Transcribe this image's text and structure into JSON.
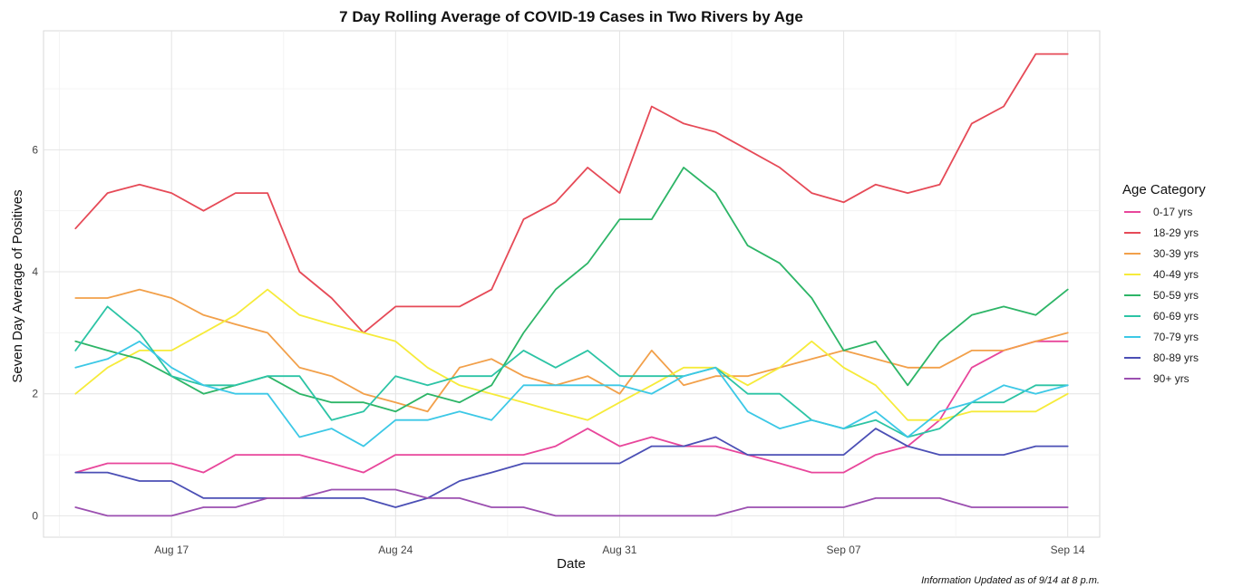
{
  "chart_data": {
    "type": "line",
    "title": "7 Day Rolling Average of COVID-19 Cases in Two Rivers by Age",
    "xlabel": "Date",
    "ylabel": "Seven Day Average of Positives",
    "caption": "Information Updated as of 9/14 at 8 p.m.",
    "legend_title": "Age Category",
    "legend_position": "right",
    "grid": true,
    "x_start": "2020-08-14",
    "x_ticks": [
      {
        "label": "Aug 17",
        "date": "2020-08-17"
      },
      {
        "label": "Aug 24",
        "date": "2020-08-24"
      },
      {
        "label": "Aug 31",
        "date": "2020-08-31"
      },
      {
        "label": "Sep 07",
        "date": "2020-09-07"
      },
      {
        "label": "Sep 14",
        "date": "2020-09-14"
      }
    ],
    "xlim": [
      "2020-08-13",
      "2020-09-15"
    ],
    "y_ticks": [
      0,
      2,
      4,
      6
    ],
    "ylim": [
      -0.35,
      7.95
    ],
    "series": [
      {
        "name": "0-17 yrs",
        "color": "#E8469B",
        "values": [
          0.71,
          0.86,
          0.86,
          0.86,
          0.71,
          1.0,
          1.0,
          1.0,
          0.86,
          0.71,
          1.0,
          1.0,
          1.0,
          1.0,
          1.0,
          1.14,
          1.43,
          1.14,
          1.29,
          1.14,
          1.14,
          1.0,
          0.86,
          0.71,
          0.71,
          1.0,
          1.14,
          1.57,
          2.43,
          2.71,
          2.86,
          2.86
        ]
      },
      {
        "name": "18-29 yrs",
        "color": "#E64A57",
        "values": [
          4.71,
          5.29,
          5.43,
          5.29,
          5.0,
          5.29,
          5.29,
          4.0,
          3.57,
          3.0,
          3.43,
          3.43,
          3.43,
          3.71,
          4.86,
          5.14,
          5.71,
          5.29,
          6.71,
          6.43,
          6.29,
          6.0,
          5.71,
          5.29,
          5.14,
          5.43,
          5.29,
          5.43,
          6.43,
          6.71,
          7.57,
          7.57
        ]
      },
      {
        "name": "30-39 yrs",
        "color": "#F2A04A",
        "values": [
          3.57,
          3.57,
          3.71,
          3.57,
          3.29,
          3.14,
          3.0,
          2.43,
          2.29,
          2.0,
          1.86,
          1.71,
          2.43,
          2.57,
          2.29,
          2.14,
          2.29,
          2.0,
          2.71,
          2.14,
          2.29,
          2.29,
          2.43,
          2.57,
          2.71,
          2.57,
          2.43,
          2.43,
          2.71,
          2.71,
          2.86,
          3.0
        ]
      },
      {
        "name": "40-49 yrs",
        "color": "#F6EB3A",
        "values": [
          2.0,
          2.43,
          2.71,
          2.71,
          3.0,
          3.29,
          3.71,
          3.29,
          3.14,
          3.0,
          2.86,
          2.43,
          2.14,
          2.0,
          1.86,
          1.71,
          1.57,
          1.86,
          2.14,
          2.43,
          2.43,
          2.14,
          2.43,
          2.86,
          2.43,
          2.14,
          1.57,
          1.57,
          1.71,
          1.71,
          1.71,
          2.0
        ]
      },
      {
        "name": "50-59 yrs",
        "color": "#2DB567",
        "values": [
          2.86,
          2.71,
          2.57,
          2.29,
          2.0,
          2.14,
          2.29,
          2.0,
          1.86,
          1.86,
          1.71,
          2.0,
          1.86,
          2.14,
          3.0,
          3.71,
          4.14,
          4.86,
          4.86,
          5.71,
          5.29,
          4.43,
          4.14,
          3.57,
          2.71,
          2.86,
          2.14,
          2.86,
          3.29,
          3.43,
          3.29,
          3.71
        ]
      },
      {
        "name": "60-69 yrs",
        "color": "#2CC4A5",
        "values": [
          2.71,
          3.43,
          3.0,
          2.29,
          2.14,
          2.14,
          2.29,
          2.29,
          1.57,
          1.71,
          2.29,
          2.14,
          2.29,
          2.29,
          2.71,
          2.43,
          2.71,
          2.29,
          2.29,
          2.29,
          2.43,
          2.0,
          2.0,
          1.57,
          1.43,
          1.57,
          1.29,
          1.43,
          1.86,
          1.86,
          2.14,
          2.14
        ]
      },
      {
        "name": "70-79 yrs",
        "color": "#3CC8E6",
        "values": [
          2.43,
          2.57,
          2.86,
          2.43,
          2.14,
          2.0,
          2.0,
          1.29,
          1.43,
          1.14,
          1.57,
          1.57,
          1.71,
          1.57,
          2.14,
          2.14,
          2.14,
          2.14,
          2.0,
          2.29,
          2.43,
          1.71,
          1.43,
          1.57,
          1.43,
          1.71,
          1.29,
          1.71,
          1.86,
          2.14,
          2.0,
          2.14
        ]
      },
      {
        "name": "80-89 yrs",
        "color": "#4B4FB5",
        "values": [
          0.71,
          0.71,
          0.57,
          0.57,
          0.29,
          0.29,
          0.29,
          0.29,
          0.29,
          0.29,
          0.14,
          0.29,
          0.57,
          0.71,
          0.86,
          0.86,
          0.86,
          0.86,
          1.14,
          1.14,
          1.29,
          1.0,
          1.0,
          1.0,
          1.0,
          1.43,
          1.14,
          1.0,
          1.0,
          1.0,
          1.14,
          1.14
        ]
      },
      {
        "name": "90+ yrs",
        "color": "#9B4FB0",
        "values": [
          0.14,
          0.0,
          0.0,
          0.0,
          0.14,
          0.14,
          0.29,
          0.29,
          0.43,
          0.43,
          0.43,
          0.29,
          0.29,
          0.14,
          0.14,
          0.0,
          0.0,
          0.0,
          0.0,
          0.0,
          0.0,
          0.14,
          0.14,
          0.14,
          0.14,
          0.29,
          0.29,
          0.29,
          0.14,
          0.14,
          0.14,
          0.14
        ]
      }
    ]
  }
}
